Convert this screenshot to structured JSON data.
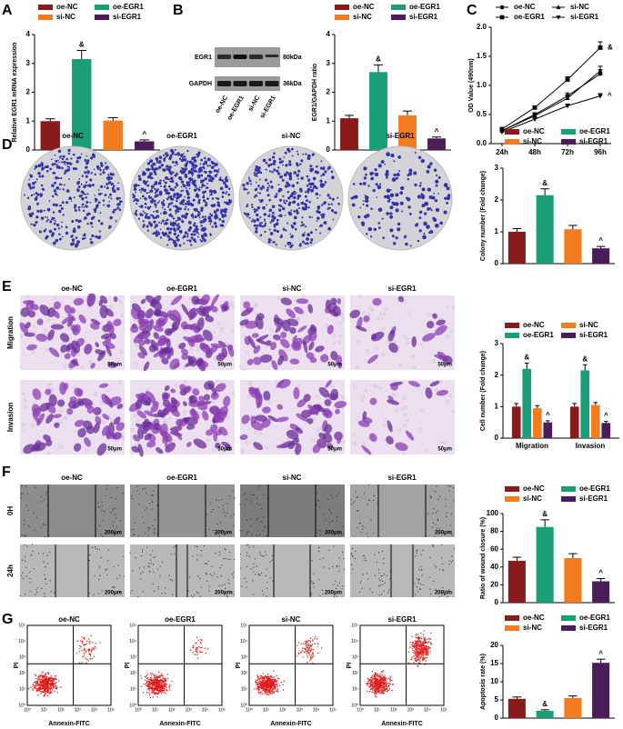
{
  "panel_labels": [
    "A",
    "B",
    "C",
    "D",
    "E",
    "F",
    "G"
  ],
  "blot": {
    "bands": [
      "EGR1",
      "GAPDH"
    ],
    "sizes": [
      "80kDa",
      "36kDa"
    ],
    "lanes": [
      "oe-NC",
      "oe-EGR1",
      "si-NC",
      "si-EGR1"
    ]
  },
  "images": {
    "groups": [
      "oe-NC",
      "oe-EGR1",
      "si-NC",
      "si-EGR1"
    ],
    "transwell_rows": [
      "Migration",
      "Invasion"
    ],
    "transwell_scale": "50μm",
    "wound_rows": [
      "0H",
      "24h"
    ],
    "wound_scale": "200μm",
    "flow_x_label": "Annexin-FITC",
    "flow_y_label": "PI",
    "flow_ticks": [
      "10⁰",
      "10¹",
      "10²",
      "10³",
      "10⁴",
      "10⁵"
    ]
  },
  "chart_data": [
    {
      "type": "bar",
      "y_label": "Relative EGR1 mRNA expression",
      "categories": [
        "oe-NC",
        "oe-EGR1",
        "si-NC",
        "si-EGR1"
      ],
      "colors": [
        "#8b1a1a",
        "#1a9e77",
        "#f47b20",
        "#4b1c5a"
      ],
      "values": [
        1.0,
        3.15,
        1.02,
        0.3
      ],
      "errors": [
        0.08,
        0.3,
        0.1,
        0.05
      ],
      "ylim": [
        0,
        4
      ],
      "yticks": [
        0,
        1,
        2,
        3,
        4
      ],
      "annotations": [
        {
          "text": "&",
          "series": "oe-EGR1"
        },
        {
          "text": "^",
          "series": "si-EGR1"
        }
      ]
    },
    {
      "type": "bar",
      "y_label": "EGR1/GAPDH ratio",
      "categories": [
        "oe-NC",
        "oe-EGR1",
        "si-NC",
        "si-EGR1"
      ],
      "colors": [
        "#8b1a1a",
        "#1a9e77",
        "#f47b20",
        "#4b1c5a"
      ],
      "values": [
        1.1,
        2.7,
        1.2,
        0.4
      ],
      "errors": [
        0.1,
        0.25,
        0.15,
        0.05
      ],
      "ylim": [
        0,
        4
      ],
      "yticks": [
        0,
        1,
        2,
        3,
        4
      ],
      "annotations": [
        {
          "text": "&",
          "series": "oe-EGR1"
        },
        {
          "text": "^",
          "series": "si-EGR1"
        }
      ]
    },
    {
      "type": "line",
      "y_label": "OD Value (490nm)",
      "categories": [
        "24h",
        "48h",
        "72h",
        "96h"
      ],
      "series": [
        {
          "name": "oe-NC",
          "color": "#000000",
          "marker": "circle",
          "values": [
            0.22,
            0.5,
            0.82,
            1.2
          ],
          "errors": [
            0.02,
            0.03,
            0.05,
            0.07
          ]
        },
        {
          "name": "si-NC",
          "color": "#000000",
          "marker": "triangle-up",
          "values": [
            0.22,
            0.48,
            0.78,
            1.25
          ],
          "errors": [
            0.02,
            0.03,
            0.05,
            0.08
          ]
        },
        {
          "name": "oe-EGR1",
          "color": "#000000",
          "marker": "square",
          "values": [
            0.25,
            0.62,
            1.1,
            1.65
          ],
          "errors": [
            0.02,
            0.03,
            0.05,
            0.1
          ]
        },
        {
          "name": "si-EGR1",
          "color": "#000000",
          "marker": "triangle-down",
          "values": [
            0.2,
            0.42,
            0.65,
            0.82
          ],
          "errors": [
            0.02,
            0.02,
            0.03,
            0.04
          ]
        }
      ],
      "ylim": [
        0,
        2
      ],
      "yticks": [
        {
          "value": 0,
          "label": "0.0"
        },
        0.5,
        {
          "value": 1,
          "label": "1.0"
        },
        1.5,
        {
          "value": 2,
          "label": "2.0"
        }
      ],
      "annotations": [
        {
          "text": "&",
          "series": "oe-EGR1"
        },
        {
          "text": "^",
          "series": "si-EGR1"
        }
      ]
    },
    {
      "type": "bar",
      "y_label": "Colony number (Fold change)",
      "categories": [
        "oe-NC",
        "oe-EGR1",
        "si-NC",
        "si-EGR1"
      ],
      "colors": [
        "#8b1a1a",
        "#1a9e77",
        "#f47b20",
        "#4b1c5a"
      ],
      "values": [
        1.0,
        2.15,
        1.08,
        0.48
      ],
      "errors": [
        0.1,
        0.2,
        0.12,
        0.06
      ],
      "ylim": [
        0,
        3
      ],
      "yticks": [
        0,
        1,
        2,
        3
      ],
      "annotations": [
        {
          "text": "&",
          "series": "oe-EGR1"
        },
        {
          "text": "^",
          "series": "si-EGR1"
        }
      ]
    },
    {
      "type": "grouped_bar",
      "y_label": "Cell number (Fold change)",
      "categories": [
        "Migration",
        "Invasion"
      ],
      "series": [
        {
          "name": "oe-NC",
          "color": "#8b1a1a",
          "values": [
            1.0,
            1.0
          ],
          "errors": [
            0.1,
            0.1
          ]
        },
        {
          "name": "si-NC",
          "color": "#f47b20",
          "values": [
            0.95,
            1.05
          ],
          "errors": [
            0.08,
            0.08
          ]
        },
        {
          "name": "oe-EGR1",
          "color": "#1a9e77",
          "values": [
            2.2,
            2.15
          ],
          "errors": [
            0.18,
            0.18
          ]
        },
        {
          "name": "si-EGR1",
          "color": "#4b1c5a",
          "values": [
            0.5,
            0.48
          ],
          "errors": [
            0.05,
            0.05
          ]
        }
      ],
      "ylim": [
        0,
        3
      ],
      "yticks": [
        0,
        1,
        2,
        3
      ],
      "annotations": [
        {
          "text": "&",
          "series": "oe-EGR1",
          "category": "Migration"
        },
        {
          "text": "^",
          "series": "si-EGR1",
          "category": "Migration"
        },
        {
          "text": "&",
          "series": "oe-EGR1",
          "category": "Invasion"
        },
        {
          "text": "^",
          "series": "si-EGR1",
          "category": "Invasion"
        }
      ]
    },
    {
      "type": "bar",
      "y_label": "Ratio of wound closure (%)",
      "categories": [
        "oe-NC",
        "oe-EGR1",
        "si-NC",
        "si-EGR1"
      ],
      "colors": [
        "#8b1a1a",
        "#1a9e77",
        "#f47b20",
        "#4b1c5a"
      ],
      "values": [
        47,
        85,
        50,
        24
      ],
      "errors": [
        4,
        8,
        5,
        3
      ],
      "ylim": [
        0,
        100
      ],
      "yticks": [
        0,
        20,
        40,
        60,
        80,
        100
      ],
      "annotations": [
        {
          "text": "&",
          "series": "oe-EGR1"
        },
        {
          "text": "^",
          "series": "si-EGR1"
        }
      ]
    },
    {
      "type": "bar",
      "y_label": "Apoptosis rate (%)",
      "categories": [
        "oe-NC",
        "oe-EGR1",
        "si-NC",
        "si-EGR1"
      ],
      "colors": [
        "#8b1a1a",
        "#1a9e77",
        "#f47b20",
        "#4b1c5a"
      ],
      "values": [
        5.3,
        2.0,
        5.5,
        15.2
      ],
      "errors": [
        0.5,
        0.3,
        0.6,
        1.0
      ],
      "ylim": [
        0,
        20
      ],
      "yticks": [
        0,
        5,
        10,
        15,
        20
      ],
      "annotations": [
        {
          "text": "&",
          "series": "oe-EGR1"
        },
        {
          "text": "^",
          "series": "si-EGR1"
        }
      ]
    }
  ]
}
